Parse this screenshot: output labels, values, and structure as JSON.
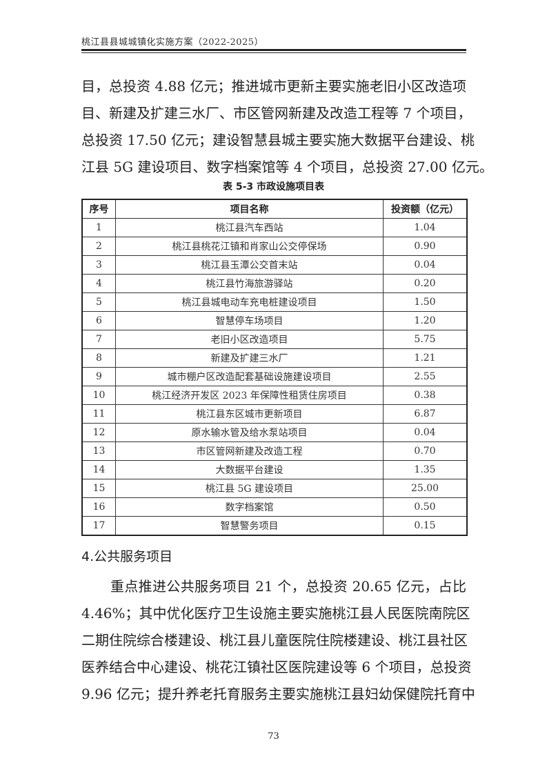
{
  "header": {
    "title": "桃江县县城城镇化实施方案（2022-2025）"
  },
  "paragraph1": [
    "目，总投资 4.88 亿元；推进城市更新主要实施老旧小区改造项",
    "目、新建及扩建三水厂、市区管网新建及改造工程等 7 个项目，",
    "总投资 17.50 亿元；建设智慧县城主要实施大数据平台建设、桃",
    "江县 5G 建设项目、数字档案馆等 4 个项目，总投资 27.00 亿元。"
  ],
  "table": {
    "caption": "表 5-3  市政设施项目表",
    "headers": [
      "序号",
      "项目名称",
      "投资额（亿元）"
    ],
    "rows": [
      [
        "1",
        "桃江县汽车西站",
        "1.04"
      ],
      [
        "2",
        "桃江县桃花江镇和肖家山公交停保场",
        "0.90"
      ],
      [
        "3",
        "桃江县玉潭公交首末站",
        "0.04"
      ],
      [
        "4",
        "桃江县竹海旅游驿站",
        "0.20"
      ],
      [
        "5",
        "桃江县城电动车充电桩建设项目",
        "1.50"
      ],
      [
        "6",
        "智慧停车场项目",
        "1.20"
      ],
      [
        "7",
        "老旧小区改造项目",
        "5.75"
      ],
      [
        "8",
        "新建及扩建三水厂",
        "1.21"
      ],
      [
        "9",
        "城市棚户区改造配套基础设施建设项目",
        "2.55"
      ],
      [
        "10",
        "桃江经济开发区 2023 年保障性租赁住房项目",
        "0.38"
      ],
      [
        "11",
        "桃江县东区城市更新项目",
        "6.87"
      ],
      [
        "12",
        "原水输水管及给水泵站项目",
        "0.04"
      ],
      [
        "13",
        "市区管网新建及改造工程",
        "0.70"
      ],
      [
        "14",
        "大数据平台建设",
        "1.35"
      ],
      [
        "15",
        "桃江县 5G 建设项目",
        "25.00"
      ],
      [
        "16",
        "数字档案馆",
        "0.50"
      ],
      [
        "17",
        "智慧警务项目",
        "0.15"
      ]
    ]
  },
  "section": {
    "heading": "4.公共服务项目"
  },
  "paragraph2": [
    "重点推进公共服务项目 21 个，总投资 20.65 亿元，占比",
    "4.46%；其中优化医疗卫生设施主要实施桃江县人民医院南院区",
    "二期住院综合楼建设、桃江县儿童医院住院楼建设、桃江县社区",
    "医养结合中心建设、桃花江镇社区医院建设等 6 个项目，总投资",
    "9.96 亿元；提升养老托育服务主要实施桃江县妇幼保健院托育中"
  ],
  "footer": {
    "page_number": "73"
  }
}
